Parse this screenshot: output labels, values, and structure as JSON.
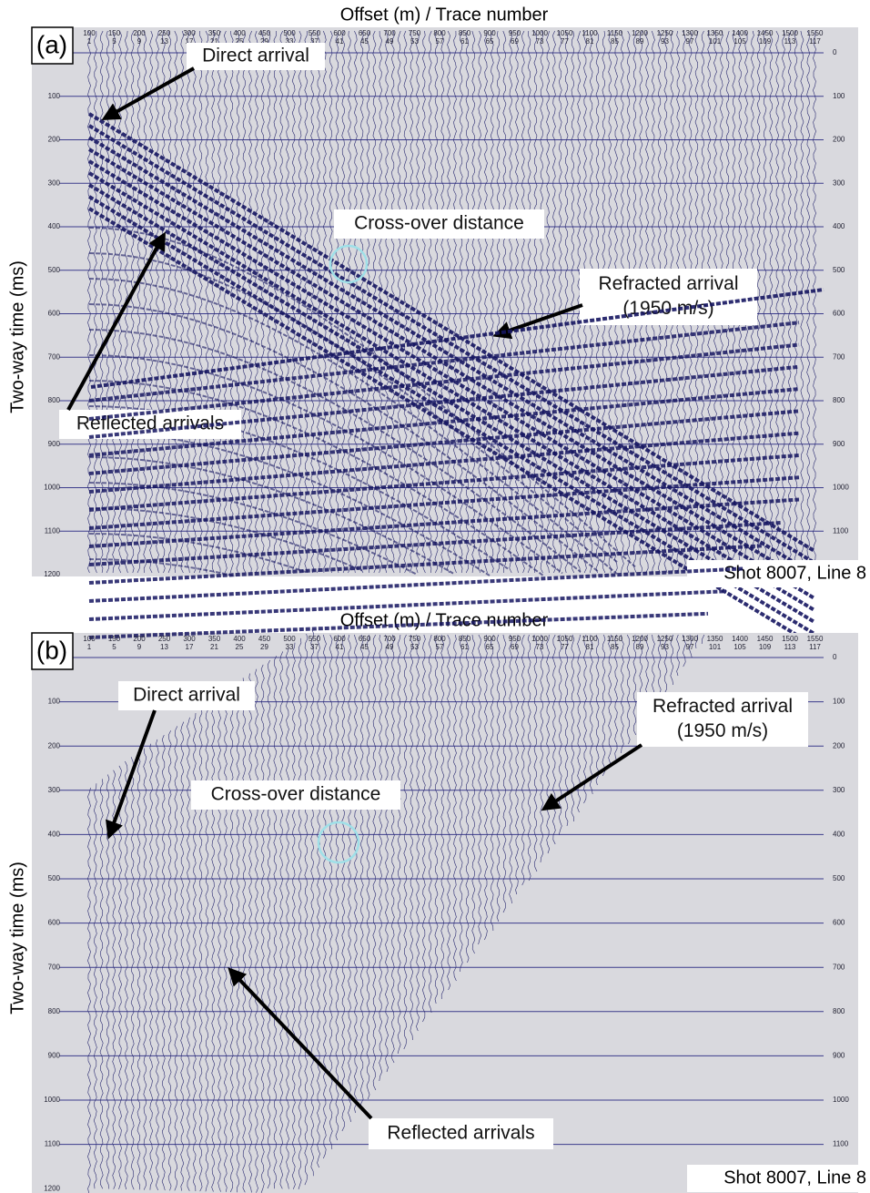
{
  "figure": {
    "x_title": "Offset (m) / Trace number",
    "y_title": "Two-way time (ms)",
    "panels": [
      {
        "label": "(a)",
        "offset_labels": [
          100,
          150,
          200,
          250,
          300,
          350,
          400,
          450,
          500,
          550,
          600,
          650,
          700,
          750,
          800,
          850,
          900,
          950,
          1000,
          1050,
          1100,
          1150,
          1200,
          1250,
          1300,
          1350,
          1400,
          1450,
          1500,
          1550
        ],
        "trace_labels": [
          1,
          5,
          9,
          13,
          17,
          21,
          25,
          29,
          33,
          37,
          41,
          45,
          49,
          53,
          57,
          61,
          65,
          69,
          73,
          77,
          81,
          85,
          89,
          93,
          97,
          101,
          105,
          109,
          113,
          117
        ],
        "left_time_labels": [
          100,
          200,
          300,
          400,
          500,
          600,
          700,
          800,
          900,
          1000,
          1100,
          1200
        ],
        "right_time_labels": [
          0,
          100,
          200,
          300,
          400,
          500,
          600,
          700,
          800,
          900,
          1000,
          1100
        ],
        "annotations": [
          {
            "lines": [
              "Direct arrival"
            ]
          },
          {
            "lines": [
              "Cross-over distance"
            ]
          },
          {
            "lines": [
              "Refracted arrival",
              "(1950 m/s)"
            ]
          },
          {
            "lines": [
              "Reflected arrivals"
            ]
          }
        ],
        "caption": "Shot 8007, Line 8"
      },
      {
        "label": "(b)",
        "offset_labels": [
          100,
          150,
          200,
          250,
          300,
          350,
          400,
          450,
          500,
          550,
          600,
          650,
          700,
          750,
          800,
          850,
          900,
          950,
          1000,
          1050,
          1100,
          1150,
          1200,
          1250,
          1300,
          1350,
          1400,
          1450,
          1500,
          1550
        ],
        "trace_labels": [
          1,
          5,
          9,
          13,
          17,
          21,
          25,
          29,
          33,
          37,
          41,
          45,
          49,
          53,
          57,
          61,
          65,
          69,
          73,
          77,
          81,
          85,
          89,
          93,
          97,
          101,
          105,
          109,
          113,
          117
        ],
        "left_time_labels": [
          100,
          200,
          300,
          400,
          500,
          600,
          700,
          800,
          900,
          1000,
          1100,
          1200
        ],
        "right_time_labels": [
          0,
          100,
          200,
          300,
          400,
          500,
          600,
          700,
          800,
          900,
          1000,
          1100
        ],
        "annotations": [
          {
            "lines": [
              "Direct arrival"
            ]
          },
          {
            "lines": [
              "Cross-over distance"
            ]
          },
          {
            "lines": [
              "Refracted arrival",
              "(1950 m/s)"
            ]
          },
          {
            "lines": [
              "Reflected arrivals"
            ]
          }
        ],
        "caption": "Shot 8007, Line 8"
      }
    ]
  }
}
